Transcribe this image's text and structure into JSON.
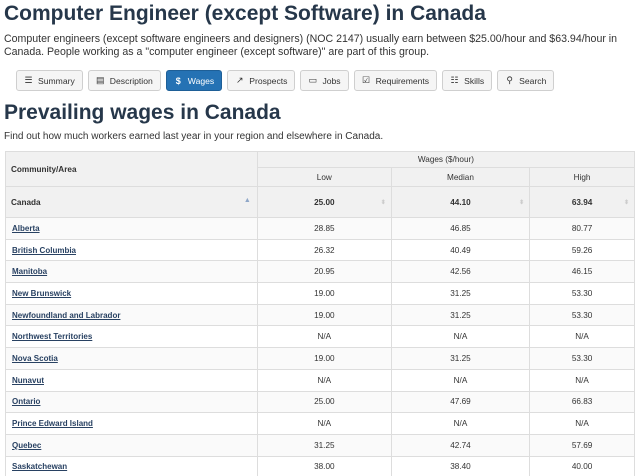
{
  "page": {
    "title": "Computer Engineer (except Software) in Canada",
    "intro": "Computer engineers (except software engineers and designers) (NOC 2147) usually earn between $25.00/hour and $63.94/hour in Canada. People working as a \"computer engineer (except software)\" are part of this group."
  },
  "tabs": [
    {
      "label": "Summary",
      "icon": "list-icon",
      "glyph": "☰"
    },
    {
      "label": "Description",
      "icon": "document-icon",
      "glyph": "▤"
    },
    {
      "label": "Wages",
      "icon": "dollar-icon",
      "glyph": "$",
      "active": true
    },
    {
      "label": "Prospects",
      "icon": "line-chart-icon",
      "glyph": "↗"
    },
    {
      "label": "Jobs",
      "icon": "briefcase-icon",
      "glyph": "▭"
    },
    {
      "label": "Requirements",
      "icon": "checkbox-icon",
      "glyph": "☑"
    },
    {
      "label": "Skills",
      "icon": "sliders-icon",
      "glyph": "☷"
    },
    {
      "label": "Search",
      "icon": "search-icon",
      "glyph": "⚲"
    }
  ],
  "section": {
    "title": "Prevailing wages in Canada",
    "description": "Find out how much workers earned last year in your region and elsewhere in Canada."
  },
  "table": {
    "col_community": "Community/Area",
    "col_group": "Wages ($/hour)",
    "col_low": "Low",
    "col_median": "Median",
    "col_high": "High",
    "canada": {
      "name": "Canada",
      "low": "25.00",
      "median": "44.10",
      "high": "63.94"
    },
    "rows": [
      {
        "name": "Alberta",
        "low": "28.85",
        "median": "46.85",
        "high": "80.77"
      },
      {
        "name": "British Columbia",
        "low": "26.32",
        "median": "40.49",
        "high": "59.26"
      },
      {
        "name": "Manitoba",
        "low": "20.95",
        "median": "42.56",
        "high": "46.15"
      },
      {
        "name": "New Brunswick",
        "low": "19.00",
        "median": "31.25",
        "high": "53.30"
      },
      {
        "name": "Newfoundland and Labrador",
        "low": "19.00",
        "median": "31.25",
        "high": "53.30"
      },
      {
        "name": "Northwest Territories",
        "low": "N/A",
        "median": "N/A",
        "high": "N/A"
      },
      {
        "name": "Nova Scotia",
        "low": "19.00",
        "median": "31.25",
        "high": "53.30"
      },
      {
        "name": "Nunavut",
        "low": "N/A",
        "median": "N/A",
        "high": "N/A"
      },
      {
        "name": "Ontario",
        "low": "25.00",
        "median": "47.69",
        "high": "66.83"
      },
      {
        "name": "Prince Edward Island",
        "low": "N/A",
        "median": "N/A",
        "high": "N/A"
      },
      {
        "name": "Quebec",
        "low": "31.25",
        "median": "42.74",
        "high": "57.69"
      },
      {
        "name": "Saskatchewan",
        "low": "38.00",
        "median": "38.40",
        "high": "40.00"
      }
    ]
  }
}
